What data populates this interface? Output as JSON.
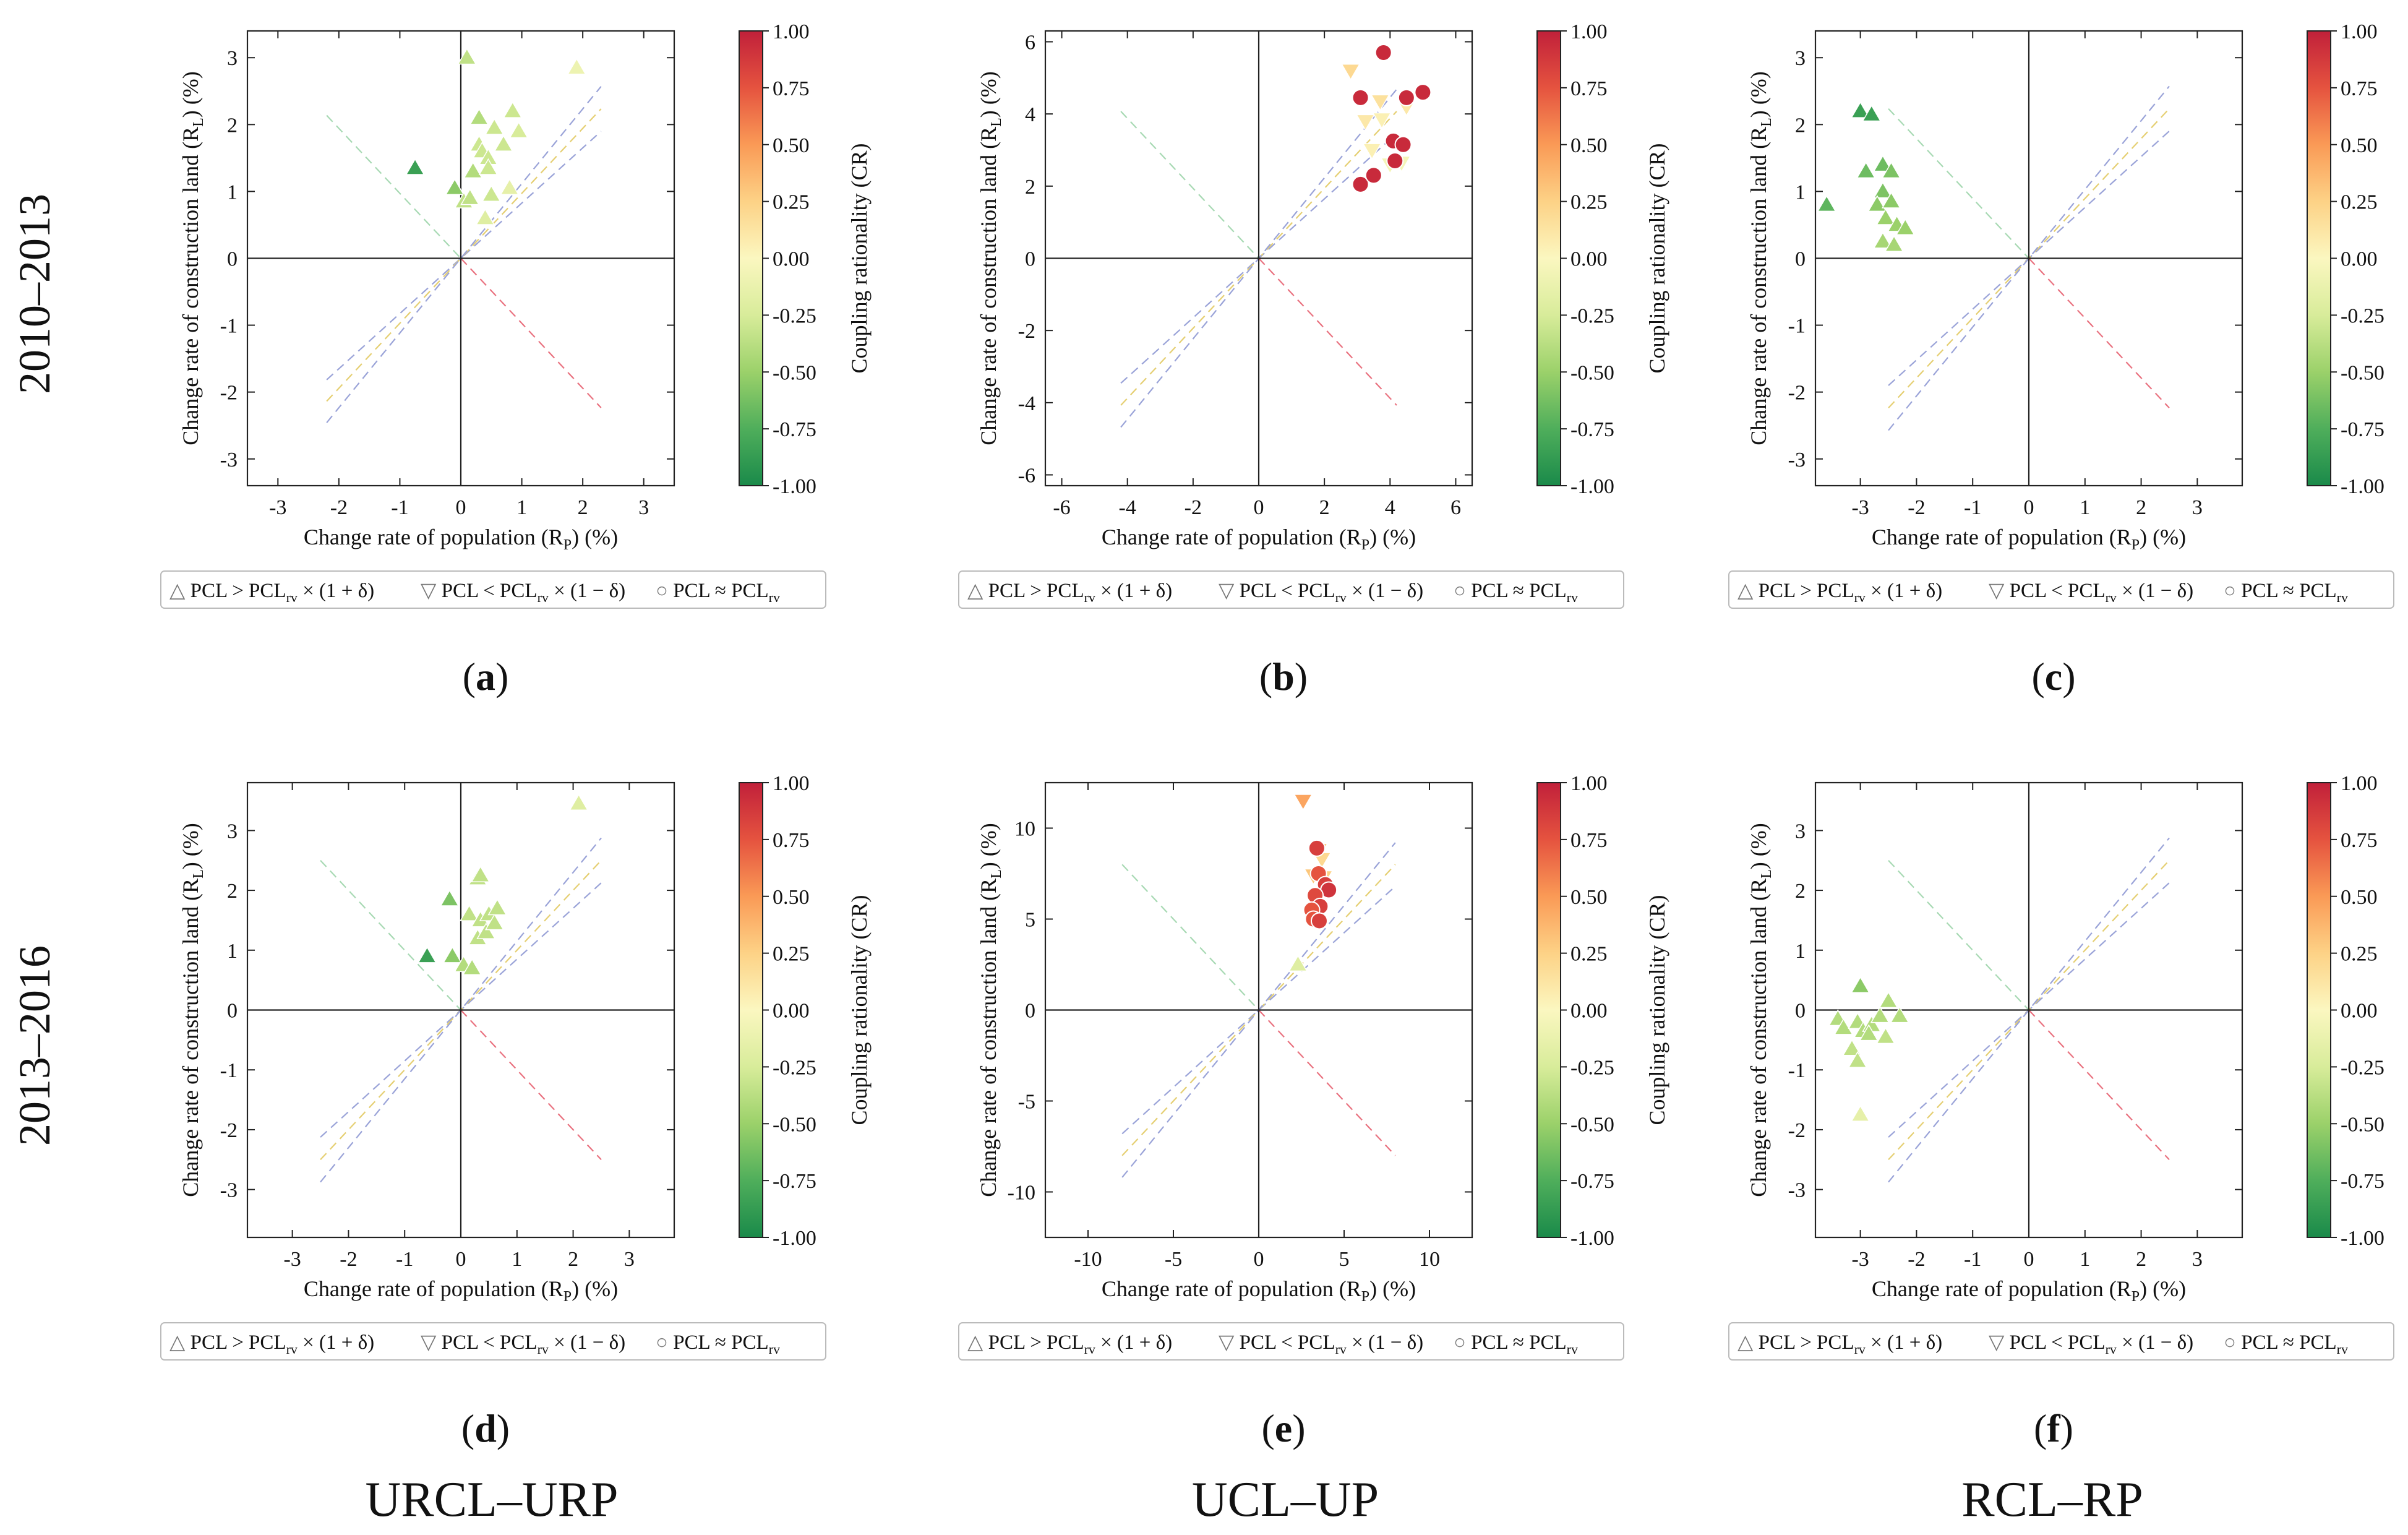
{
  "figure": {
    "row_labels": [
      "2010–2013",
      "2013–2016"
    ],
    "column_labels": [
      "URCL–URP",
      "UCL–UP",
      "RCL–RP"
    ],
    "colorbar": {
      "label": "Coupling rationality (CR)",
      "ticks": [
        "1.00",
        "0.75",
        "0.50",
        "0.25",
        "0.00",
        "-0.25",
        "-0.50",
        "-0.75",
        "-1.00"
      ],
      "stops": [
        "#1a8a4a",
        "#4fae5b",
        "#9bd16a",
        "#d8ec9a",
        "#fbf7c0",
        "#fdd286",
        "#fa9a56",
        "#e5533f",
        "#c1203a"
      ]
    },
    "legend": {
      "above": {
        "symbol": "△",
        "text": "PCL > PCL",
        "sub": "rv",
        "suffix": " × (1 + δ)"
      },
      "below": {
        "symbol": "▽",
        "text": "PCL < PCL",
        "sub": "rv",
        "suffix": " × (1 − δ)"
      },
      "approx": {
        "symbol": "○",
        "text": "PCL ≈ PCL",
        "sub": "rv",
        "suffix": ""
      }
    },
    "ylabel": {
      "text": "Change rate of construction land (R",
      "sub": "L",
      "suffix": ") (%)"
    },
    "xlabel": {
      "text": "Change rate of population (R",
      "sub": "P",
      "suffix": ") (%)"
    },
    "colors": {
      "line_blue": "#9aa3d8",
      "line_yellow": "#e5cf72",
      "line_green": "#a7d9b3",
      "line_red": "#e9717f"
    }
  },
  "chart_data": [
    {
      "panel": "(a)",
      "type": "scatter",
      "xlim": [
        -3.5,
        3.5
      ],
      "ylim": [
        -3.4,
        3.4
      ],
      "xticks": [
        -3,
        -2,
        -1,
        0,
        1,
        2,
        3
      ],
      "yticks": [
        -3,
        -2,
        -1,
        0,
        1,
        2,
        3
      ],
      "guide_lines": {
        "x_extent": 2.3,
        "x_extent_neg": 2.2,
        "diag": 0.95
      },
      "points": [
        {
          "x": -0.75,
          "y": 1.35,
          "cr": -0.85,
          "m": "up"
        },
        {
          "x": -0.1,
          "y": 1.05,
          "cr": -0.55,
          "m": "up"
        },
        {
          "x": 0.1,
          "y": 3.0,
          "cr": -0.35,
          "m": "up"
        },
        {
          "x": 0.05,
          "y": 0.85,
          "cr": -0.35,
          "m": "up"
        },
        {
          "x": 0.15,
          "y": 0.9,
          "cr": -0.35,
          "m": "up"
        },
        {
          "x": 0.2,
          "y": 1.3,
          "cr": -0.4,
          "m": "up"
        },
        {
          "x": 0.3,
          "y": 2.1,
          "cr": -0.4,
          "m": "up"
        },
        {
          "x": 0.3,
          "y": 1.7,
          "cr": -0.3,
          "m": "up"
        },
        {
          "x": 0.35,
          "y": 1.6,
          "cr": -0.3,
          "m": "up"
        },
        {
          "x": 0.45,
          "y": 1.5,
          "cr": -0.3,
          "m": "up"
        },
        {
          "x": 0.45,
          "y": 1.35,
          "cr": -0.3,
          "m": "up"
        },
        {
          "x": 0.55,
          "y": 1.95,
          "cr": -0.3,
          "m": "up"
        },
        {
          "x": 0.5,
          "y": 0.95,
          "cr": -0.3,
          "m": "up"
        },
        {
          "x": 0.4,
          "y": 0.6,
          "cr": -0.2,
          "m": "up"
        },
        {
          "x": 0.7,
          "y": 1.7,
          "cr": -0.3,
          "m": "up"
        },
        {
          "x": 0.85,
          "y": 2.2,
          "cr": -0.3,
          "m": "up"
        },
        {
          "x": 0.95,
          "y": 1.9,
          "cr": -0.25,
          "m": "up"
        },
        {
          "x": 0.8,
          "y": 1.05,
          "cr": -0.15,
          "m": "up"
        },
        {
          "x": 1.9,
          "y": 2.85,
          "cr": -0.1,
          "m": "up"
        }
      ]
    },
    {
      "panel": "(b)",
      "type": "scatter",
      "xlim": [
        -6.5,
        6.5
      ],
      "ylim": [
        -6.3,
        6.3
      ],
      "xticks": [
        -6,
        -4,
        -2,
        0,
        2,
        4,
        6
      ],
      "yticks": [
        -6,
        -4,
        -2,
        0,
        2,
        4,
        6
      ],
      "guide_lines": {
        "x_extent": 4.2,
        "x_extent_neg": 4.2,
        "diag": 0.95
      },
      "points": [
        {
          "x": 2.8,
          "y": 5.2,
          "cr": 0.2,
          "m": "down"
        },
        {
          "x": 3.7,
          "y": 4.35,
          "cr": 0.15,
          "m": "down"
        },
        {
          "x": 3.25,
          "y": 3.8,
          "cr": 0.1,
          "m": "down"
        },
        {
          "x": 3.75,
          "y": 3.85,
          "cr": 0.05,
          "m": "down"
        },
        {
          "x": 3.45,
          "y": 3.0,
          "cr": 0.05,
          "m": "down"
        },
        {
          "x": 4.0,
          "y": 2.6,
          "cr": -0.05,
          "m": "down"
        },
        {
          "x": 4.35,
          "y": 2.65,
          "cr": -0.05,
          "m": "down"
        },
        {
          "x": 4.5,
          "y": 4.2,
          "cr": 0.1,
          "m": "down"
        },
        {
          "x": 3.1,
          "y": 4.45,
          "cr": 0.95,
          "m": "circle"
        },
        {
          "x": 3.8,
          "y": 5.7,
          "cr": 0.95,
          "m": "circle"
        },
        {
          "x": 4.5,
          "y": 4.45,
          "cr": 0.95,
          "m": "circle"
        },
        {
          "x": 5.0,
          "y": 4.6,
          "cr": 0.95,
          "m": "circle"
        },
        {
          "x": 4.1,
          "y": 3.25,
          "cr": 0.95,
          "m": "circle"
        },
        {
          "x": 4.4,
          "y": 3.15,
          "cr": 0.95,
          "m": "circle"
        },
        {
          "x": 4.15,
          "y": 2.7,
          "cr": 0.95,
          "m": "circle"
        },
        {
          "x": 3.1,
          "y": 2.05,
          "cr": 0.95,
          "m": "circle"
        },
        {
          "x": 3.5,
          "y": 2.3,
          "cr": 0.95,
          "m": "circle"
        }
      ]
    },
    {
      "panel": "(c)",
      "type": "scatter",
      "xlim": [
        -3.8,
        3.8
      ],
      "ylim": [
        -3.4,
        3.4
      ],
      "xticks": [
        -3,
        -2,
        -1,
        0,
        1,
        2,
        3
      ],
      "yticks": [
        -3,
        -2,
        -1,
        0,
        1,
        2,
        3
      ],
      "guide_lines": {
        "x_extent": 2.5,
        "x_extent_neg": 2.5,
        "diag": 0.95
      },
      "points": [
        {
          "x": -3.0,
          "y": 2.2,
          "cr": -0.85,
          "m": "up"
        },
        {
          "x": -2.8,
          "y": 2.15,
          "cr": -0.85,
          "m": "up"
        },
        {
          "x": -3.6,
          "y": 0.8,
          "cr": -0.7,
          "m": "up"
        },
        {
          "x": -2.9,
          "y": 1.3,
          "cr": -0.65,
          "m": "up"
        },
        {
          "x": -2.6,
          "y": 1.4,
          "cr": -0.65,
          "m": "up"
        },
        {
          "x": -2.45,
          "y": 1.3,
          "cr": -0.6,
          "m": "up"
        },
        {
          "x": -2.6,
          "y": 1.0,
          "cr": -0.6,
          "m": "up"
        },
        {
          "x": -2.7,
          "y": 0.8,
          "cr": -0.55,
          "m": "up"
        },
        {
          "x": -2.45,
          "y": 0.85,
          "cr": -0.55,
          "m": "up"
        },
        {
          "x": -2.55,
          "y": 0.6,
          "cr": -0.5,
          "m": "up"
        },
        {
          "x": -2.35,
          "y": 0.5,
          "cr": -0.5,
          "m": "up"
        },
        {
          "x": -2.2,
          "y": 0.45,
          "cr": -0.5,
          "m": "up"
        },
        {
          "x": -2.6,
          "y": 0.25,
          "cr": -0.45,
          "m": "up"
        },
        {
          "x": -2.4,
          "y": 0.2,
          "cr": -0.45,
          "m": "up"
        }
      ]
    },
    {
      "panel": "(d)",
      "type": "scatter",
      "xlim": [
        -3.8,
        3.8
      ],
      "ylim": [
        -3.8,
        3.8
      ],
      "xticks": [
        -3,
        -2,
        -1,
        0,
        1,
        2,
        3
      ],
      "yticks": [
        -3,
        -2,
        -1,
        0,
        1,
        2,
        3
      ],
      "guide_lines": {
        "x_extent": 2.5,
        "x_extent_neg": 2.5,
        "diag": 0.95
      },
      "points": [
        {
          "x": -0.6,
          "y": 0.9,
          "cr": -0.85,
          "m": "up"
        },
        {
          "x": -0.2,
          "y": 1.85,
          "cr": -0.6,
          "m": "up"
        },
        {
          "x": -0.15,
          "y": 0.9,
          "cr": -0.55,
          "m": "up"
        },
        {
          "x": 0.05,
          "y": 0.75,
          "cr": -0.4,
          "m": "up"
        },
        {
          "x": 0.2,
          "y": 0.7,
          "cr": -0.4,
          "m": "up"
        },
        {
          "x": 0.15,
          "y": 1.6,
          "cr": -0.35,
          "m": "up"
        },
        {
          "x": 0.3,
          "y": 2.2,
          "cr": -0.35,
          "m": "up"
        },
        {
          "x": 0.35,
          "y": 2.25,
          "cr": -0.35,
          "m": "up"
        },
        {
          "x": 0.35,
          "y": 1.5,
          "cr": -0.35,
          "m": "up"
        },
        {
          "x": 0.3,
          "y": 1.2,
          "cr": -0.35,
          "m": "up"
        },
        {
          "x": 0.45,
          "y": 1.3,
          "cr": -0.35,
          "m": "up"
        },
        {
          "x": 0.5,
          "y": 1.6,
          "cr": -0.35,
          "m": "up"
        },
        {
          "x": 0.6,
          "y": 1.45,
          "cr": -0.35,
          "m": "up"
        },
        {
          "x": 0.65,
          "y": 1.7,
          "cr": -0.35,
          "m": "up"
        },
        {
          "x": 2.1,
          "y": 3.45,
          "cr": -0.2,
          "m": "up"
        }
      ]
    },
    {
      "panel": "(e)",
      "type": "scatter",
      "xlim": [
        -12.5,
        12.5
      ],
      "ylim": [
        -12.5,
        12.5
      ],
      "xticks": [
        -10,
        -5,
        0,
        5,
        10
      ],
      "yticks": [
        -10,
        -5,
        0,
        5,
        10
      ],
      "guide_lines": {
        "x_extent": 8.0,
        "x_extent_neg": 8.0,
        "diag": 0.95
      },
      "points": [
        {
          "x": 2.6,
          "y": 11.5,
          "cr": 0.45,
          "m": "down"
        },
        {
          "x": 3.5,
          "y": 8.8,
          "cr": 0.3,
          "m": "down"
        },
        {
          "x": 3.7,
          "y": 8.3,
          "cr": 0.2,
          "m": "down"
        },
        {
          "x": 3.2,
          "y": 7.4,
          "cr": 0.3,
          "m": "down"
        },
        {
          "x": 3.8,
          "y": 7.3,
          "cr": 0.25,
          "m": "down"
        },
        {
          "x": 2.3,
          "y": 2.5,
          "cr": -0.2,
          "m": "up"
        },
        {
          "x": 3.4,
          "y": 8.9,
          "cr": 0.85,
          "m": "circle"
        },
        {
          "x": 3.5,
          "y": 7.5,
          "cr": 0.75,
          "m": "circle"
        },
        {
          "x": 3.9,
          "y": 6.9,
          "cr": 0.85,
          "m": "circle"
        },
        {
          "x": 4.1,
          "y": 6.6,
          "cr": 0.9,
          "m": "circle"
        },
        {
          "x": 3.3,
          "y": 6.3,
          "cr": 0.8,
          "m": "circle"
        },
        {
          "x": 3.6,
          "y": 5.7,
          "cr": 0.85,
          "m": "circle"
        },
        {
          "x": 3.1,
          "y": 5.5,
          "cr": 0.75,
          "m": "circle"
        },
        {
          "x": 3.2,
          "y": 5.0,
          "cr": 0.75,
          "m": "circle"
        },
        {
          "x": 3.55,
          "y": 4.9,
          "cr": 0.85,
          "m": "circle"
        }
      ]
    },
    {
      "panel": "(f)",
      "type": "scatter",
      "xlim": [
        -3.8,
        3.8
      ],
      "ylim": [
        -3.8,
        3.8
      ],
      "xticks": [
        -3,
        -2,
        -1,
        0,
        1,
        2,
        3
      ],
      "yticks": [
        -3,
        -2,
        -1,
        0,
        1,
        2,
        3
      ],
      "guide_lines": {
        "x_extent": 2.5,
        "x_extent_neg": 2.5,
        "diag": 0.95
      },
      "points": [
        {
          "x": -3.0,
          "y": 0.4,
          "cr": -0.55,
          "m": "up"
        },
        {
          "x": -3.4,
          "y": -0.15,
          "cr": -0.4,
          "m": "up"
        },
        {
          "x": -3.3,
          "y": -0.3,
          "cr": -0.4,
          "m": "up"
        },
        {
          "x": -3.05,
          "y": -0.2,
          "cr": -0.4,
          "m": "up"
        },
        {
          "x": -2.95,
          "y": -0.35,
          "cr": -0.4,
          "m": "up"
        },
        {
          "x": -2.8,
          "y": -0.25,
          "cr": -0.4,
          "m": "up"
        },
        {
          "x": -2.65,
          "y": -0.1,
          "cr": -0.4,
          "m": "up"
        },
        {
          "x": -2.5,
          "y": 0.15,
          "cr": -0.4,
          "m": "up"
        },
        {
          "x": -2.3,
          "y": -0.1,
          "cr": -0.4,
          "m": "up"
        },
        {
          "x": -2.85,
          "y": -0.4,
          "cr": -0.4,
          "m": "up"
        },
        {
          "x": -2.55,
          "y": -0.45,
          "cr": -0.35,
          "m": "up"
        },
        {
          "x": -3.15,
          "y": -0.65,
          "cr": -0.35,
          "m": "up"
        },
        {
          "x": -3.05,
          "y": -0.85,
          "cr": -0.35,
          "m": "up"
        },
        {
          "x": -3.0,
          "y": -1.75,
          "cr": -0.15,
          "m": "up"
        }
      ]
    }
  ]
}
